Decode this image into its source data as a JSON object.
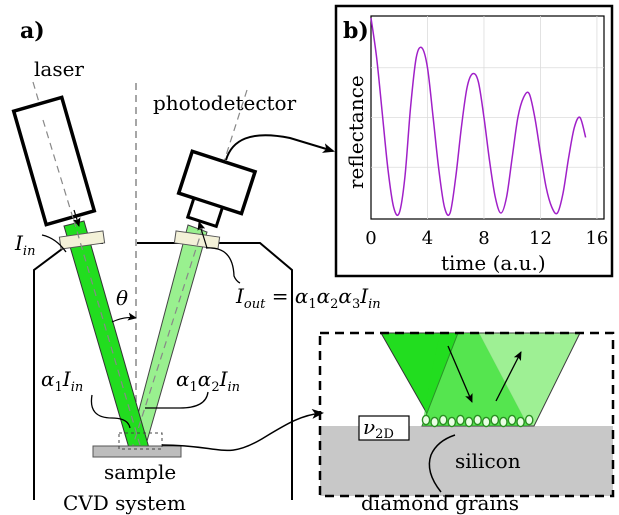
{
  "figure": {
    "panel_a": {
      "label": "a)",
      "laser_label": "laser",
      "photodetector_label": "photodetector",
      "theta_symbol": "θ",
      "sample_label": "sample",
      "chamber_label": "CVD system",
      "i_in": {
        "base": "I",
        "sub": "in"
      },
      "i_out": {
        "lhs_base": "I",
        "lhs_sub": "out",
        "eq": " = ",
        "alpha": "α",
        "s1": "1",
        "s2": "2",
        "s3": "3",
        "rhs_base": "I",
        "rhs_sub": "in"
      },
      "a1_label": {
        "alpha": "α",
        "s1": "1",
        "base": "I",
        "sub": "in"
      },
      "a1a2_label": {
        "alpha": "α",
        "s1": "1",
        "s2": "2",
        "base": "I",
        "sub": "in"
      }
    },
    "panel_b": {
      "label": "b)",
      "ylabel": "reflectance",
      "xlabel": "time (a.u.)",
      "xticks": [
        "0",
        "4",
        "8",
        "12",
        "16"
      ]
    },
    "panel_c": {
      "nu_label": {
        "base": "ν",
        "sub": "2D"
      },
      "silicon_label": "silicon",
      "grains_label": "diamond grains"
    },
    "colors": {
      "beam_in": "#22dd1f",
      "beam_out": "#99f08f",
      "window": "#f3f1d8",
      "curve": "#a020c8",
      "silicon": "#c8c8c8",
      "sample": "#bdbdbd"
    }
  },
  "chart_data": {
    "type": "line",
    "xlabel": "time (a.u.)",
    "ylabel": "reflectance",
    "xlim": [
      0,
      16.5
    ],
    "xticks": [
      0,
      4,
      8,
      12,
      16
    ],
    "yticks_shown": false,
    "grid": true,
    "series": [
      {
        "color": "#a020c8",
        "x": [
          0.0,
          0.4,
          0.8,
          1.2,
          1.6,
          2.0,
          2.4,
          2.8,
          3.2,
          3.6,
          4.0,
          4.4,
          4.8,
          5.2,
          5.6,
          6.0,
          6.4,
          6.8,
          7.2,
          7.6,
          8.0,
          8.4,
          8.8,
          9.2,
          9.6,
          10.0,
          10.4,
          10.8,
          11.2,
          11.6,
          12.0,
          12.4,
          12.8,
          13.2,
          13.6,
          14.0,
          14.4,
          14.8,
          15.2
        ],
        "y": [
          1.0,
          0.8,
          0.52,
          0.24,
          0.05,
          0.02,
          0.2,
          0.55,
          0.8,
          0.85,
          0.75,
          0.5,
          0.24,
          0.05,
          0.02,
          0.2,
          0.45,
          0.65,
          0.72,
          0.68,
          0.5,
          0.28,
          0.1,
          0.02,
          0.1,
          0.3,
          0.5,
          0.6,
          0.62,
          0.5,
          0.32,
          0.15,
          0.05,
          0.02,
          0.12,
          0.3,
          0.45,
          0.5,
          0.4
        ]
      }
    ]
  }
}
